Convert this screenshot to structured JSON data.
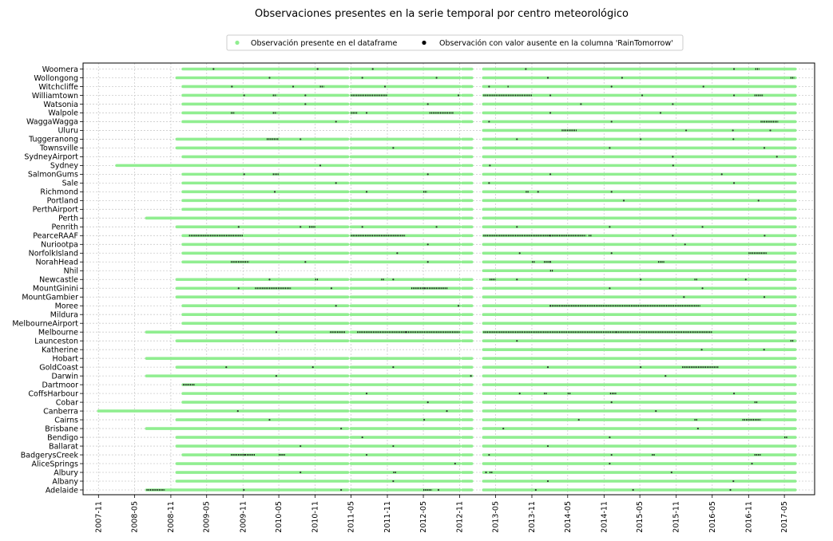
{
  "chart_data": {
    "type": "scatter",
    "title": "Observaciones presentes en la serie temporal por centro meteorológico",
    "xlabel": "",
    "ylabel": "",
    "grid": true,
    "legend_position": "top-center",
    "x_tick_labels": [
      "2007-11",
      "2008-05",
      "2008-11",
      "2009-05",
      "2009-11",
      "2010-05",
      "2010-11",
      "2011-05",
      "2011-11",
      "2012-05",
      "2012-11",
      "2013-05",
      "2013-11",
      "2014-05",
      "2014-11",
      "2015-05",
      "2015-11",
      "2016-05",
      "2016-11",
      "2017-05"
    ],
    "xlim": [
      "2007-08-15",
      "2017-10-01"
    ],
    "series": [
      {
        "name": "Observación presente en el dataframe",
        "color": "#90ee90"
      },
      {
        "name": "Observación con valor ausente en la columna 'RainTomorrow'",
        "color": "#000000"
      }
    ],
    "gaps": [
      [
        "2011-04-15",
        "2011-05-01"
      ],
      [
        "2012-11-01",
        "2013-01-01"
      ],
      [
        "2013-01-01",
        "2013-03-01"
      ]
    ],
    "locations": [
      {
        "name": "Woomera",
        "start": "2009-01-01",
        "missing": [
          [
            "2016-12-05",
            "2016-12-25"
          ]
        ],
        "sparse": [
          0.05,
          0.22,
          0.31,
          0.56,
          0.9
        ]
      },
      {
        "name": "Wollongong",
        "start": "2008-12-01",
        "missing": [
          [
            "2017-06-01",
            "2017-06-20"
          ]
        ],
        "sparse": [
          0.15,
          0.3,
          0.42,
          0.6,
          0.72
        ]
      },
      {
        "name": "Witchcliffe",
        "start": "2009-01-01",
        "missing": [
          [
            "2010-11-25",
            "2010-12-15"
          ],
          [
            "2013-07-01",
            "2013-07-10"
          ]
        ],
        "sparse": [
          0.08,
          0.18,
          0.33,
          0.5,
          0.7,
          0.85
        ]
      },
      {
        "name": "Williamtown",
        "start": "2009-01-01",
        "missing": [
          [
            "2011-05-01",
            "2011-11-01"
          ],
          [
            "2013-03-01",
            "2013-11-01"
          ],
          [
            "2016-12-01",
            "2017-01-15"
          ],
          [
            "2010-04-01",
            "2010-04-20"
          ]
        ],
        "sparse": [
          0.1,
          0.2,
          0.45,
          0.6,
          0.75,
          0.9
        ]
      },
      {
        "name": "Watsonia",
        "start": "2009-01-01",
        "missing": [],
        "sparse": [
          0.2,
          0.4,
          0.65,
          0.8
        ]
      },
      {
        "name": "Walpole",
        "start": "2009-01-01",
        "missing": [
          [
            "2009-09-01",
            "2009-09-20"
          ],
          [
            "2010-04-01",
            "2010-04-20"
          ],
          [
            "2012-06-01",
            "2012-10-01"
          ],
          [
            "2011-05-01",
            "2011-06-01"
          ]
        ],
        "sparse": [
          0.3,
          0.6,
          0.78
        ]
      },
      {
        "name": "WaggaWagga",
        "start": "2009-01-01",
        "missing": [
          [
            "2017-01-01",
            "2017-04-01"
          ]
        ],
        "sparse": [
          0.25,
          0.5,
          0.7
        ]
      },
      {
        "name": "Uluru",
        "start": "2013-03-01",
        "missing": [
          [
            "2014-04-01",
            "2014-06-15"
          ]
        ],
        "sparse": [
          0.65,
          0.8,
          0.92
        ]
      },
      {
        "name": "Tuggeranong",
        "start": "2008-12-01",
        "missing": [
          [
            "2010-03-01",
            "2010-05-01"
          ]
        ],
        "sparse": [
          0.2,
          0.55,
          0.75,
          0.9
        ]
      },
      {
        "name": "Townsville",
        "start": "2008-12-01",
        "missing": [],
        "sparse": [
          0.35,
          0.7,
          0.95
        ]
      },
      {
        "name": "SydneyAirport",
        "start": "2009-01-01",
        "missing": [],
        "sparse": [
          0.8,
          0.97
        ]
      },
      {
        "name": "Sydney",
        "start": "2008-02-01",
        "missing": [],
        "sparse": [
          0.3,
          0.55,
          0.82
        ]
      },
      {
        "name": "SalmonGums",
        "start": "2009-01-01",
        "missing": [
          [
            "2010-04-01",
            "2010-05-01"
          ]
        ],
        "sparse": [
          0.1,
          0.4,
          0.6,
          0.88
        ]
      },
      {
        "name": "Sale",
        "start": "2009-01-01",
        "missing": [],
        "sparse": [
          0.25,
          0.5,
          0.9
        ]
      },
      {
        "name": "Richmond",
        "start": "2009-01-01",
        "missing": [
          [
            "2012-05-01",
            "2012-05-20"
          ],
          [
            "2013-10-01",
            "2013-10-15"
          ]
        ],
        "sparse": [
          0.15,
          0.3,
          0.58,
          0.7
        ]
      },
      {
        "name": "Portland",
        "start": "2009-01-01",
        "missing": [],
        "sparse": [
          0.72,
          0.94
        ]
      },
      {
        "name": "PerthAirport",
        "start": "2009-01-01",
        "missing": [],
        "sparse": []
      },
      {
        "name": "Perth",
        "start": "2008-07-01",
        "missing": [],
        "sparse": []
      },
      {
        "name": "Penrith",
        "start": "2008-12-01",
        "missing": [
          [
            "2010-10-01",
            "2010-11-01"
          ]
        ],
        "sparse": [
          0.1,
          0.2,
          0.3,
          0.42,
          0.55,
          0.7,
          0.85
        ]
      },
      {
        "name": "PearceRAAF",
        "start": "2009-01-01",
        "missing": [
          [
            "2009-02-01",
            "2009-11-01"
          ],
          [
            "2011-05-01",
            "2012-02-01"
          ],
          [
            "2013-03-01",
            "2014-08-01"
          ],
          [
            "2014-08-15",
            "2014-09-01"
          ]
        ],
        "sparse": [
          0.6,
          0.8,
          0.95
        ]
      },
      {
        "name": "Nuriootpa",
        "start": "2009-01-01",
        "missing": [],
        "sparse": [
          0.4,
          0.82
        ]
      },
      {
        "name": "NorfolkIsland",
        "start": "2009-01-01",
        "missing": [
          [
            "2016-11-01",
            "2017-02-01"
          ]
        ],
        "sparse": [
          0.35,
          0.55,
          0.7
        ]
      },
      {
        "name": "NorahHead",
        "start": "2009-01-01",
        "missing": [
          [
            "2009-09-01",
            "2009-12-01"
          ],
          [
            "2013-11-01",
            "2013-11-15"
          ],
          [
            "2015-08-01",
            "2015-09-01"
          ],
          [
            "2014-01-01",
            "2014-02-01"
          ]
        ],
        "sparse": [
          0.2,
          0.4,
          0.6
        ]
      },
      {
        "name": "Nhil",
        "start": "2013-03-01",
        "missing": [
          [
            "2014-02-01",
            "2014-02-15"
          ]
        ],
        "sparse": []
      },
      {
        "name": "Newcastle",
        "start": "2008-12-01",
        "missing": [
          [
            "2010-11-01",
            "2010-11-15"
          ],
          [
            "2011-10-01",
            "2011-10-15"
          ],
          [
            "2013-04-01",
            "2013-05-01"
          ],
          [
            "2016-02-01",
            "2016-02-15"
          ]
        ],
        "sparse": [
          0.15,
          0.35,
          0.55,
          0.75,
          0.92
        ]
      },
      {
        "name": "MountGinini",
        "start": "2008-12-01",
        "missing": [
          [
            "2010-01-01",
            "2010-07-01"
          ],
          [
            "2012-03-01",
            "2012-09-01"
          ]
        ],
        "sparse": [
          0.1,
          0.25,
          0.4,
          0.7,
          0.85
        ]
      },
      {
        "name": "MountGambier",
        "start": "2008-12-01",
        "missing": [],
        "sparse": [
          0.82,
          0.95
        ]
      },
      {
        "name": "Moree",
        "start": "2009-01-01",
        "missing": [
          [
            "2014-02-01",
            "2016-03-01"
          ]
        ],
        "sparse": [
          0.25,
          0.45,
          0.6
        ]
      },
      {
        "name": "Mildura",
        "start": "2009-01-01",
        "missing": [],
        "sparse": []
      },
      {
        "name": "MelbourneAirport",
        "start": "2009-01-01",
        "missing": [],
        "sparse": []
      },
      {
        "name": "Melbourne",
        "start": "2008-07-01",
        "missing": [
          [
            "2011-01-15",
            "2011-04-01"
          ],
          [
            "2011-06-01",
            "2012-11-01"
          ],
          [
            "2013-03-01",
            "2015-01-01"
          ],
          [
            "2015-01-01",
            "2016-05-01"
          ]
        ],
        "sparse": [
          0.2,
          0.4
        ]
      },
      {
        "name": "Launceston",
        "start": "2008-12-01",
        "missing": [
          [
            "2017-06-01",
            "2017-06-15"
          ]
        ],
        "sparse": [
          0.55
        ]
      },
      {
        "name": "Katherine",
        "start": "2013-03-01",
        "missing": [],
        "sparse": [
          0.7,
          0.9
        ]
      },
      {
        "name": "Hobart",
        "start": "2008-07-01",
        "missing": [],
        "sparse": []
      },
      {
        "name": "GoldCoast",
        "start": "2008-12-01",
        "missing": [
          [
            "2015-12-01",
            "2016-06-01"
          ]
        ],
        "sparse": [
          0.08,
          0.22,
          0.35,
          0.6,
          0.75
        ]
      },
      {
        "name": "Darwin",
        "start": "2008-07-01",
        "missing": [],
        "sparse": [
          0.2,
          0.5,
          0.8
        ]
      },
      {
        "name": "Dartmoor",
        "start": "2009-01-01",
        "missing": [
          [
            "2009-01-01",
            "2009-03-01"
          ]
        ],
        "sparse": []
      },
      {
        "name": "CoffsHarbour",
        "start": "2009-01-01",
        "missing": [
          [
            "2014-01-01",
            "2014-01-15"
          ],
          [
            "2014-05-01",
            "2014-05-15"
          ],
          [
            "2014-12-01",
            "2015-01-01"
          ]
        ],
        "sparse": [
          0.3,
          0.55,
          0.9
        ]
      },
      {
        "name": "Cobar",
        "start": "2009-01-01",
        "missing": [
          [
            "2016-12-01",
            "2016-12-15"
          ]
        ],
        "sparse": [
          0.4,
          0.7
        ]
      },
      {
        "name": "Canberra",
        "start": "2007-11-01",
        "missing": [],
        "sparse": [
          0.2,
          0.5,
          0.8
        ]
      },
      {
        "name": "Cairns",
        "start": "2008-12-01",
        "missing": [
          [
            "2016-02-01",
            "2016-02-15"
          ],
          [
            "2016-10-01",
            "2017-01-01"
          ]
        ],
        "sparse": [
          0.15,
          0.4,
          0.65
        ]
      },
      {
        "name": "Brisbane",
        "start": "2008-07-01",
        "missing": [],
        "sparse": [
          0.3,
          0.55,
          0.85
        ]
      },
      {
        "name": "Bendigo",
        "start": "2008-12-01",
        "missing": [
          [
            "2017-05-01",
            "2017-05-15"
          ]
        ],
        "sparse": [
          0.3,
          0.7
        ]
      },
      {
        "name": "Ballarat",
        "start": "2008-12-01",
        "missing": [],
        "sparse": [
          0.2,
          0.35,
          0.6
        ]
      },
      {
        "name": "BadgerysCreek",
        "start": "2009-01-01",
        "missing": [
          [
            "2009-09-01",
            "2010-01-01"
          ],
          [
            "2010-05-01",
            "2010-06-01"
          ],
          [
            "2015-07-01",
            "2015-07-15"
          ],
          [
            "2016-12-01",
            "2017-01-01"
          ]
        ],
        "sparse": [
          0.1,
          0.3,
          0.5,
          0.7
        ]
      },
      {
        "name": "AliceSprings",
        "start": "2008-12-01",
        "missing": [],
        "sparse": [
          0.45,
          0.7,
          0.93
        ]
      },
      {
        "name": "Albury",
        "start": "2008-12-01",
        "missing": [
          [
            "2011-12-01",
            "2011-12-15"
          ],
          [
            "2013-04-01",
            "2013-04-15"
          ]
        ],
        "sparse": [
          0.2,
          0.5,
          0.8
        ]
      },
      {
        "name": "Albany",
        "start": "2008-12-01",
        "missing": [],
        "sparse": [
          0.35,
          0.6,
          0.9
        ]
      },
      {
        "name": "Adelaide",
        "start": "2008-07-01",
        "missing": [
          [
            "2008-07-01",
            "2008-10-01"
          ],
          [
            "2012-05-01",
            "2012-06-15"
          ]
        ],
        "sparse": [
          0.15,
          0.3,
          0.45,
          0.6,
          0.75,
          0.9
        ]
      }
    ]
  }
}
